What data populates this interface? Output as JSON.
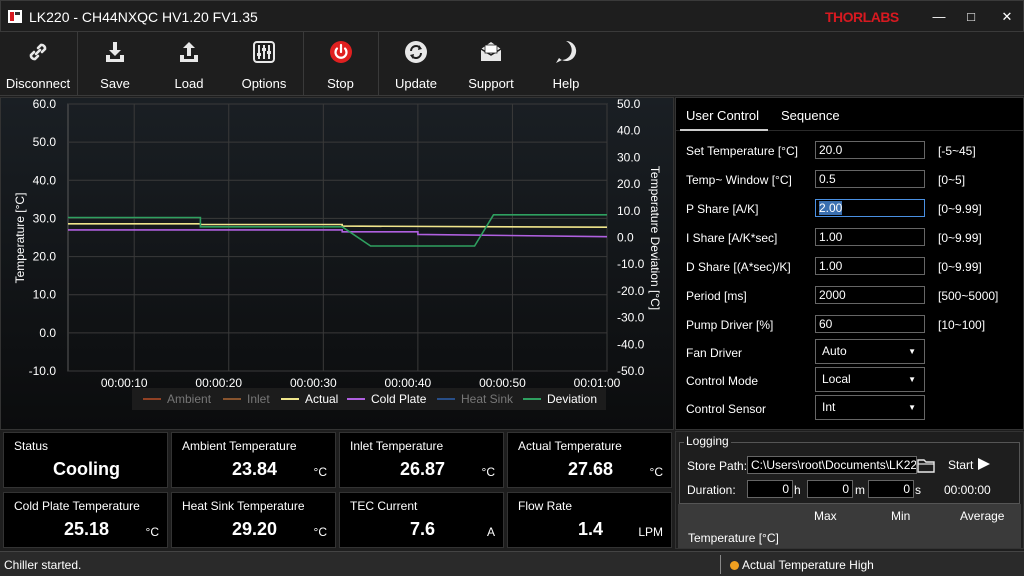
{
  "window": {
    "title": "LK220 - CH44NXQC HV1.20 FV1.35",
    "brand": "THORLABS",
    "minimize_glyph": "—",
    "maximize_glyph": "□",
    "close_glyph": "✕"
  },
  "toolbar": {
    "buttons": [
      {
        "label": "Disconnect",
        "icon": "link-icon"
      },
      {
        "label": "Save",
        "icon": "download-icon"
      },
      {
        "label": "Load",
        "icon": "upload-icon"
      },
      {
        "label": "Options",
        "icon": "sliders-icon"
      },
      {
        "label": "Stop",
        "icon": "power-icon"
      },
      {
        "label": "Update",
        "icon": "refresh-icon"
      },
      {
        "label": "Support",
        "icon": "envelope-icon"
      },
      {
        "label": "Help",
        "icon": "help-icon"
      }
    ],
    "stop_color": "#e02020"
  },
  "chart_data": {
    "type": "line",
    "ylabel": "Temperature [°C]",
    "y2label": "Temperature Deviation [°C]",
    "ylim": [
      -10,
      60
    ],
    "y2lim": [
      -50,
      50
    ],
    "y_ticks": [
      "60.0",
      "50.0",
      "40.0",
      "30.0",
      "20.0",
      "10.0",
      "0.0",
      "-10.0"
    ],
    "y2_ticks": [
      "50.0",
      "40.0",
      "30.0",
      "20.0",
      "10.0",
      "0.0",
      "-10.0",
      "-20.0",
      "-30.0",
      "-40.0",
      "-50.0"
    ],
    "x_ticks": [
      "00:00:10",
      "00:00:20",
      "00:00:30",
      "00:00:40",
      "00:00:50",
      "00:01:00"
    ],
    "xlim": [
      3,
      60
    ],
    "grid": true,
    "legend_position": "bottom",
    "series": [
      {
        "name": "Ambient",
        "color": "#e05a2a",
        "enabled": false,
        "x": [],
        "values": []
      },
      {
        "name": "Inlet",
        "color": "#d07a3a",
        "enabled": false,
        "x": [],
        "values": []
      },
      {
        "name": "Actual",
        "color": "#f0e68c",
        "enabled": true,
        "axis": "left",
        "x": [
          3,
          17,
          17,
          32,
          32,
          60
        ],
        "values": [
          28.6,
          28.6,
          28.4,
          28.4,
          28.0,
          27.7
        ]
      },
      {
        "name": "Cold Plate",
        "color": "#b060e0",
        "enabled": true,
        "axis": "left",
        "x": [
          3,
          32,
          32,
          40,
          40,
          60
        ],
        "values": [
          27.0,
          27.0,
          26.5,
          26.5,
          25.8,
          25.2
        ]
      },
      {
        "name": "Heat Sink",
        "color": "#3070d0",
        "enabled": false,
        "x": [],
        "values": []
      },
      {
        "name": "Deviation",
        "color": "#2fa060",
        "enabled": true,
        "axis": "right",
        "x": [
          3,
          17,
          17,
          32,
          35,
          46,
          48,
          60
        ],
        "values": [
          7.5,
          7.5,
          4.0,
          4.0,
          -3.2,
          -3.2,
          8.5,
          8.5
        ]
      }
    ]
  },
  "control": {
    "tabs": [
      "User Control",
      "Sequence"
    ],
    "params": [
      {
        "label": "Set Temperature [°C]",
        "value": "20.0",
        "range": "[-5~45]"
      },
      {
        "label": "Temp~ Window [°C]",
        "value": "0.5",
        "range": "[0~5]"
      },
      {
        "label": "P Share [A/K]",
        "value": "2.00",
        "range": "[0~9.99]"
      },
      {
        "label": "I Share [A/K*sec]",
        "value": "1.00",
        "range": "[0~9.99]"
      },
      {
        "label": "D Share [(A*sec)/K]",
        "value": "1.00",
        "range": "[0~9.99]"
      },
      {
        "label": "Period [ms]",
        "value": "2000",
        "range": "[500~5000]"
      },
      {
        "label": "Pump Driver [%]",
        "value": "60",
        "range": "[10~100]"
      }
    ],
    "selects": [
      {
        "label": "Fan Driver",
        "value": "Auto"
      },
      {
        "label": "Control Mode",
        "value": "Local"
      },
      {
        "label": "Control Sensor",
        "value": "Int"
      }
    ]
  },
  "tiles": [
    {
      "label": "Status",
      "value": "Cooling",
      "unit": ""
    },
    {
      "label": "Ambient Temperature",
      "value": "23.84",
      "unit": "°C"
    },
    {
      "label": "Inlet Temperature",
      "value": "26.87",
      "unit": "°C"
    },
    {
      "label": "Actual Temperature",
      "value": "27.68",
      "unit": "°C"
    },
    {
      "label": "Cold Plate Temperature",
      "value": "25.18",
      "unit": "°C"
    },
    {
      "label": "Heat Sink Temperature",
      "value": "29.20",
      "unit": "°C"
    },
    {
      "label": "TEC Current",
      "value": "7.6",
      "unit": "A"
    },
    {
      "label": "Flow Rate",
      "value": "1.4",
      "unit": "LPM"
    }
  ],
  "logging": {
    "title": "Logging",
    "store_path_label": "Store Path:",
    "store_path": "C:\\Users\\root\\Documents\\LK22",
    "start_label": "Start",
    "duration_label": "Duration:",
    "hours": "0",
    "hours_unit": "h",
    "minutes": "0",
    "minutes_unit": "m",
    "seconds": "0",
    "seconds_unit": "s",
    "elapsed": "00:00:00",
    "stats_headers": [
      "Max",
      "Min",
      "Average"
    ],
    "stats_row_label": "Temperature [°C]"
  },
  "status": {
    "message": "Chiller started.",
    "alert": "Actual Temperature High",
    "alert_color": "#f0a020"
  }
}
